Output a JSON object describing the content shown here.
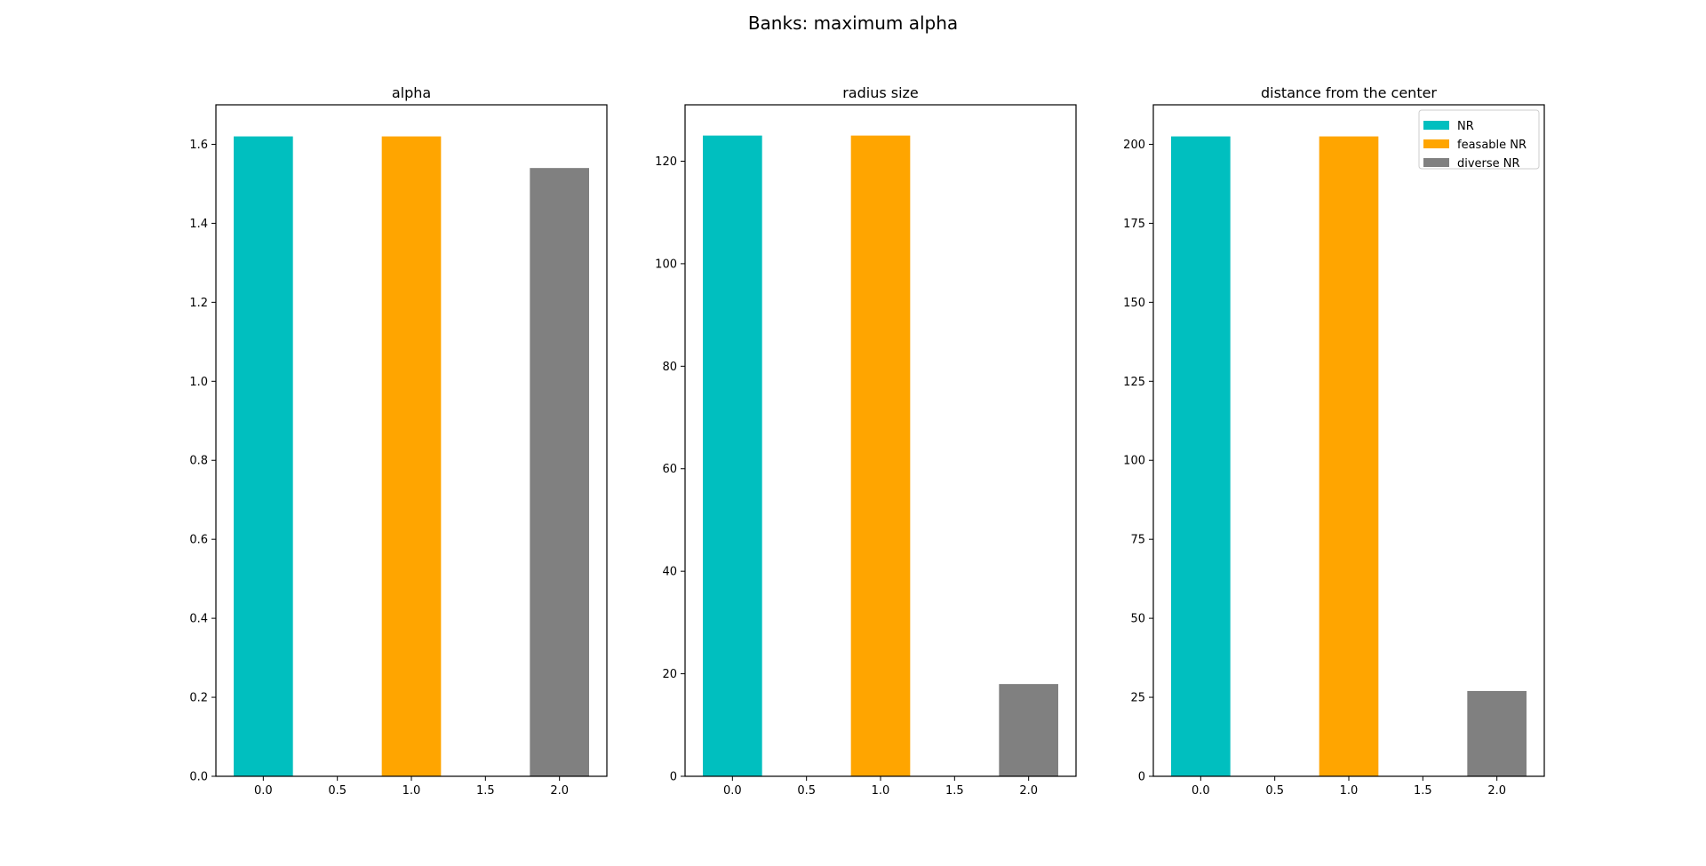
{
  "figure": {
    "title": "Banks: maximum alpha"
  },
  "chart_data": [
    {
      "type": "bar",
      "title": "alpha",
      "xlabel": "",
      "ylabel": "",
      "xlim": [
        -0.32,
        2.32
      ],
      "ylim": [
        0,
        1.7
      ],
      "xticks": [
        "0.0",
        "0.5",
        "1.0",
        "1.5",
        "2.0"
      ],
      "yticks": [
        "0.0",
        "0.2",
        "0.4",
        "0.6",
        "0.8",
        "1.0",
        "1.2",
        "1.4",
        "1.6"
      ],
      "bar_width": 0.4,
      "grid": false,
      "bars": [
        {
          "x": 0,
          "value": 1.62,
          "series": "NR",
          "color": "#00bfbf"
        },
        {
          "x": 1,
          "value": 1.62,
          "series": "feasable NR",
          "color": "#ffa500"
        },
        {
          "x": 2,
          "value": 1.54,
          "series": "diverse NR",
          "color": "#808080"
        }
      ],
      "legend": null
    },
    {
      "type": "bar",
      "title": "radius size",
      "xlabel": "",
      "ylabel": "",
      "xlim": [
        -0.32,
        2.32
      ],
      "ylim": [
        0,
        131
      ],
      "xticks": [
        "0.0",
        "0.5",
        "1.0",
        "1.5",
        "2.0"
      ],
      "yticks": [
        "0",
        "20",
        "40",
        "60",
        "80",
        "100",
        "120"
      ],
      "bar_width": 0.4,
      "grid": false,
      "bars": [
        {
          "x": 0,
          "value": 125,
          "series": "NR",
          "color": "#00bfbf"
        },
        {
          "x": 1,
          "value": 125,
          "series": "feasable NR",
          "color": "#ffa500"
        },
        {
          "x": 2,
          "value": 18,
          "series": "diverse NR",
          "color": "#808080"
        }
      ],
      "legend": null
    },
    {
      "type": "bar",
      "title": "distance from the center",
      "xlabel": "",
      "ylabel": "",
      "xlim": [
        -0.32,
        2.32
      ],
      "ylim": [
        0,
        212.5
      ],
      "xticks": [
        "0.0",
        "0.5",
        "1.0",
        "1.5",
        "2.0"
      ],
      "yticks": [
        "0",
        "25",
        "50",
        "75",
        "100",
        "125",
        "150",
        "175",
        "200"
      ],
      "bar_width": 0.4,
      "grid": false,
      "bars": [
        {
          "x": 0,
          "value": 202.5,
          "series": "NR",
          "color": "#00bfbf"
        },
        {
          "x": 1,
          "value": 202.5,
          "series": "feasable NR",
          "color": "#ffa500"
        },
        {
          "x": 2,
          "value": 27,
          "series": "diverse NR",
          "color": "#808080"
        }
      ],
      "legend": {
        "placement": "top-right",
        "entries": [
          {
            "label": "NR",
            "color": "#00bfbf"
          },
          {
            "label": "feasable NR",
            "color": "#ffa500"
          },
          {
            "label": "diverse NR",
            "color": "#808080"
          }
        ]
      }
    }
  ]
}
